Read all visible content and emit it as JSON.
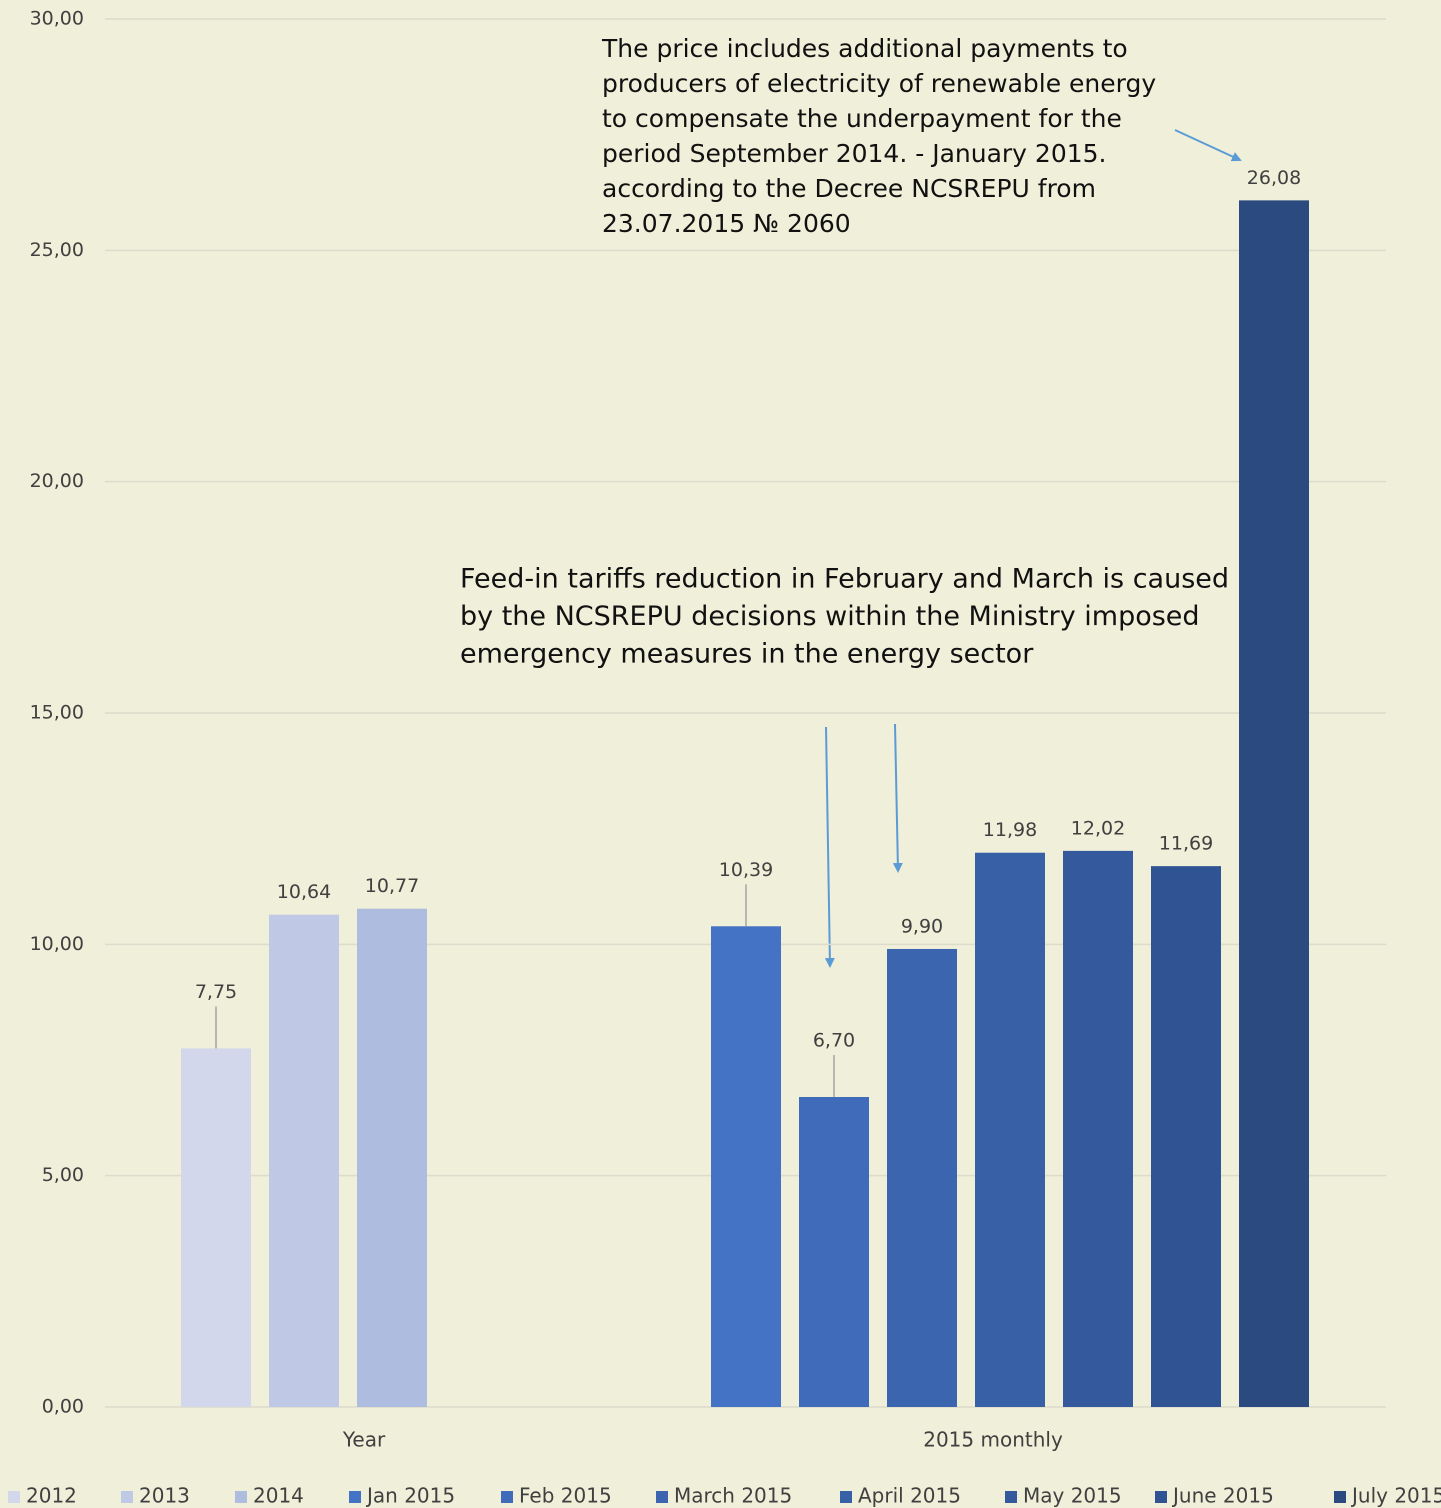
{
  "chart_data": {
    "type": "bar",
    "categories": [
      "Year",
      "2015 monthly"
    ],
    "series": [
      {
        "name": "2012",
        "color": "#d2d7ec",
        "values": [
          7.75,
          null
        ],
        "value_labels": [
          "7,75",
          null
        ]
      },
      {
        "name": "2013",
        "color": "#bfc8e5",
        "values": [
          10.64,
          null
        ],
        "value_labels": [
          "10,64",
          null
        ]
      },
      {
        "name": "2014",
        "color": "#aebcdf",
        "values": [
          10.77,
          null
        ],
        "value_labels": [
          "10,77",
          null
        ]
      },
      {
        "name": "Jan 2015",
        "color": "#4472c4",
        "values": [
          null,
          10.39
        ],
        "value_labels": [
          null,
          "10,39"
        ]
      },
      {
        "name": "Feb 2015",
        "color": "#406bba",
        "values": [
          null,
          6.7
        ],
        "value_labels": [
          null,
          "6,70"
        ]
      },
      {
        "name": "March 2015",
        "color": "#3c65b0",
        "values": [
          null,
          9.9
        ],
        "value_labels": [
          null,
          "9,90"
        ]
      },
      {
        "name": "April 2015",
        "color": "#3860a7",
        "values": [
          null,
          11.98
        ],
        "value_labels": [
          null,
          "11,98"
        ]
      },
      {
        "name": "May 2015",
        "color": "#345a9d",
        "values": [
          null,
          12.02
        ],
        "value_labels": [
          null,
          "12,02"
        ]
      },
      {
        "name": "June 2015",
        "color": "#305393",
        "values": [
          null,
          11.69
        ],
        "value_labels": [
          null,
          "11,69"
        ]
      },
      {
        "name": "July 2015",
        "color": "#2b4a80",
        "values": [
          null,
          26.08
        ],
        "value_labels": [
          null,
          "26,08"
        ]
      }
    ],
    "ylim": [
      0,
      30
    ],
    "yticks": [
      {
        "value": 0,
        "label": "0,00"
      },
      {
        "value": 5,
        "label": "5,00"
      },
      {
        "value": 10,
        "label": "10,00"
      },
      {
        "value": 15,
        "label": "15,00"
      },
      {
        "value": 20,
        "label": "20,00"
      },
      {
        "value": 25,
        "label": "25,00"
      },
      {
        "value": 30,
        "label": "30,00"
      }
    ],
    "grid": true,
    "legend": "bottom",
    "annotations": [
      {
        "lines": [
          "The price includes additional payments to",
          "producers of electricity of renewable energy",
          "to compensate  the underpayment for the",
          "period September 2014. - January 2015.",
          "according to the Decree NCSREPU from",
          "23.07.2015 № 2060"
        ]
      },
      {
        "lines": [
          "Feed-in tariffs reduction in February and March is caused",
          "by the NCSREPU decisions within the Ministry imposed",
          "emergency measures in the energy sector"
        ]
      }
    ]
  }
}
